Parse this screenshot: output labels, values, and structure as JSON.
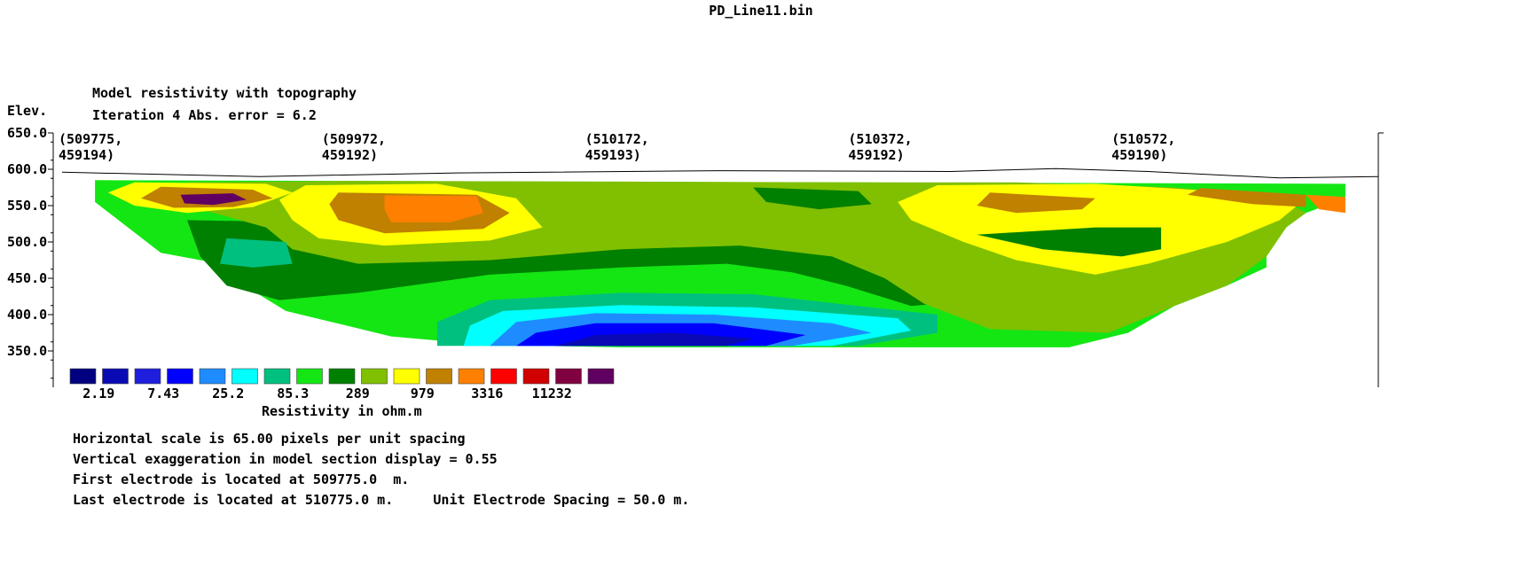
{
  "file_title": "PD_Line11.bin",
  "header": {
    "model_title": "Model resistivity with topography",
    "iteration_line": "Iteration 4 Abs. error = 6.2",
    "elev_label": "Elev."
  },
  "footer": {
    "lines": [
      "Horizontal scale is 65.00 pixels per unit spacing",
      "Vertical exaggeration in model section display = 0.55",
      "First electrode is located at 509775.0  m.",
      "Last electrode is located at 510775.0 m.     Unit Electrode Spacing = 50.0 m."
    ]
  },
  "chart_data": {
    "type": "heatmap",
    "title": "Model resistivity with topography",
    "subtitle": "Iteration 4 Abs. error = 6.2",
    "ylabel": "Elev.",
    "y_ticks": [
      "650.0",
      "600.0",
      "550.0",
      "500.0",
      "450.0",
      "400.0",
      "350.0"
    ],
    "ylim": [
      300,
      650
    ],
    "x_range": [
      509775,
      510775
    ],
    "x_markers": [
      {
        "line1": "(509775,",
        "line2": "459194)",
        "x": 509775
      },
      {
        "line1": "(509972,",
        "line2": "459192)",
        "x": 509975
      },
      {
        "line1": "(510172,",
        "line2": "459193)",
        "x": 510175
      },
      {
        "line1": "(510372,",
        "line2": "459192)",
        "x": 510375
      },
      {
        "line1": "(510572,",
        "line2": "459190)",
        "x": 510575
      }
    ],
    "topography": [
      [
        509775,
        596
      ],
      [
        509925,
        590
      ],
      [
        510075,
        595
      ],
      [
        510275,
        598
      ],
      [
        510450,
        597
      ],
      [
        510530,
        601
      ],
      [
        510600,
        597
      ],
      [
        510700,
        588
      ],
      [
        510775,
        590
      ]
    ],
    "section_outline": [
      [
        509800,
        585
      ],
      [
        510750,
        580
      ],
      [
        510750,
        560
      ],
      [
        510720,
        540
      ],
      [
        510705,
        520
      ],
      [
        510690,
        480
      ],
      [
        510690,
        465
      ],
      [
        510660,
        440
      ],
      [
        510620,
        412
      ],
      [
        510585,
        375
      ],
      [
        510540,
        355
      ],
      [
        510450,
        355
      ],
      [
        510200,
        355
      ],
      [
        510100,
        358
      ],
      [
        510025,
        370
      ],
      [
        509975,
        392
      ],
      [
        509945,
        405
      ],
      [
        509900,
        455
      ],
      [
        509895,
        470
      ],
      [
        509850,
        485
      ],
      [
        509800,
        555
      ]
    ],
    "legend": {
      "title": "Resistivity in ohm.m",
      "colors": [
        "#000080",
        "#0a0ab4",
        "#1e1edc",
        "#0000ff",
        "#1e8cff",
        "#00ffff",
        "#00c080",
        "#14e614",
        "#008000",
        "#80c000",
        "#ffff00",
        "#c08000",
        "#ff8000",
        "#ff0000",
        "#d00000",
        "#800040",
        "#600060"
      ],
      "labels": [
        "2.19",
        "7.43",
        "25.2",
        "85.3",
        "289",
        "979",
        "3316",
        "11232"
      ]
    },
    "zones": [
      {
        "color": "#14e614",
        "points": [
          [
            509800,
            585
          ],
          [
            510750,
            580
          ],
          [
            510750,
            560
          ],
          [
            510720,
            540
          ],
          [
            510705,
            520
          ],
          [
            510690,
            480
          ],
          [
            510690,
            465
          ],
          [
            510660,
            440
          ],
          [
            510620,
            412
          ],
          [
            510585,
            375
          ],
          [
            510540,
            355
          ],
          [
            510450,
            355
          ],
          [
            510200,
            355
          ],
          [
            510100,
            358
          ],
          [
            510025,
            370
          ],
          [
            509975,
            392
          ],
          [
            509945,
            405
          ],
          [
            509900,
            455
          ],
          [
            509895,
            470
          ],
          [
            509850,
            485
          ],
          [
            509800,
            555
          ]
        ]
      },
      {
        "color": "#008000",
        "points": [
          [
            509870,
            530
          ],
          [
            509930,
            528
          ],
          [
            509960,
            490
          ],
          [
            510000,
            480
          ],
          [
            510100,
            482
          ],
          [
            510200,
            495
          ],
          [
            510290,
            500
          ],
          [
            510370,
            480
          ],
          [
            510400,
            460
          ],
          [
            510440,
            415
          ],
          [
            510420,
            412
          ],
          [
            510370,
            440
          ],
          [
            510330,
            458
          ],
          [
            510280,
            470
          ],
          [
            510200,
            465
          ],
          [
            510100,
            455
          ],
          [
            510000,
            430
          ],
          [
            509940,
            420
          ],
          [
            509900,
            440
          ],
          [
            509880,
            480
          ]
        ]
      },
      {
        "color": "#80c000",
        "points": [
          [
            509870,
            582
          ],
          [
            510000,
            584
          ],
          [
            510200,
            583
          ],
          [
            510400,
            582
          ],
          [
            510500,
            582
          ],
          [
            510620,
            575
          ],
          [
            510700,
            560
          ],
          [
            510720,
            540
          ],
          [
            510705,
            520
          ],
          [
            510690,
            480
          ],
          [
            510660,
            440
          ],
          [
            510620,
            412
          ],
          [
            510570,
            375
          ],
          [
            510480,
            380
          ],
          [
            510430,
            415
          ],
          [
            510400,
            450
          ],
          [
            510360,
            480
          ],
          [
            510290,
            495
          ],
          [
            510200,
            490
          ],
          [
            510100,
            475
          ],
          [
            510000,
            470
          ],
          [
            509950,
            490
          ],
          [
            509930,
            520
          ],
          [
            509880,
            545
          ]
        ]
      },
      {
        "color": "#ffff00",
        "points": [
          [
            509960,
            578
          ],
          [
            510060,
            580
          ],
          [
            510120,
            560
          ],
          [
            510140,
            520
          ],
          [
            510100,
            502
          ],
          [
            510020,
            495
          ],
          [
            509970,
            505
          ],
          [
            509950,
            530
          ],
          [
            509940,
            558
          ]
        ]
      },
      {
        "color": "#ffff00",
        "points": [
          [
            509830,
            582
          ],
          [
            509930,
            580
          ],
          [
            509950,
            568
          ],
          [
            509920,
            548
          ],
          [
            509870,
            540
          ],
          [
            509830,
            550
          ],
          [
            509810,
            568
          ]
        ]
      },
      {
        "color": "#c08000",
        "points": [
          [
            509850,
            576
          ],
          [
            509920,
            572
          ],
          [
            509935,
            560
          ],
          [
            509905,
            548
          ],
          [
            509860,
            547
          ],
          [
            509835,
            560
          ]
        ]
      },
      {
        "color": "#600060",
        "points": [
          [
            509865,
            565
          ],
          [
            509905,
            567
          ],
          [
            509915,
            558
          ],
          [
            509890,
            551
          ],
          [
            509868,
            553
          ]
        ]
      },
      {
        "color": "#c08000",
        "points": [
          [
            509985,
            568
          ],
          [
            510090,
            565
          ],
          [
            510115,
            540
          ],
          [
            510095,
            518
          ],
          [
            510020,
            512
          ],
          [
            509985,
            530
          ],
          [
            509978,
            552
          ]
        ]
      },
      {
        "color": "#ff8000",
        "points": [
          [
            510020,
            564
          ],
          [
            510090,
            563
          ],
          [
            510095,
            540
          ],
          [
            510070,
            527
          ],
          [
            510025,
            527
          ],
          [
            510020,
            545
          ]
        ]
      },
      {
        "color": "#ffff00",
        "points": [
          [
            510440,
            578
          ],
          [
            510560,
            580
          ],
          [
            510650,
            570
          ],
          [
            510720,
            560
          ],
          [
            510700,
            530
          ],
          [
            510660,
            500
          ],
          [
            510600,
            470
          ],
          [
            510560,
            455
          ],
          [
            510500,
            475
          ],
          [
            510460,
            500
          ],
          [
            510420,
            530
          ],
          [
            510410,
            555
          ]
        ]
      },
      {
        "color": "#c08000",
        "points": [
          [
            510480,
            568
          ],
          [
            510560,
            560
          ],
          [
            510550,
            545
          ],
          [
            510500,
            540
          ],
          [
            510470,
            550
          ]
        ]
      },
      {
        "color": "#c08000",
        "points": [
          [
            510640,
            574
          ],
          [
            510720,
            565
          ],
          [
            510720,
            548
          ],
          [
            510680,
            552
          ],
          [
            510630,
            565
          ]
        ]
      },
      {
        "color": "#ff8000",
        "points": [
          [
            510720,
            565
          ],
          [
            510750,
            562
          ],
          [
            510750,
            540
          ],
          [
            510730,
            545
          ]
        ]
      },
      {
        "color": "#008000",
        "points": [
          [
            510470,
            510
          ],
          [
            510560,
            520
          ],
          [
            510610,
            520
          ],
          [
            510610,
            490
          ],
          [
            510580,
            480
          ],
          [
            510520,
            490
          ]
        ]
      },
      {
        "color": "#008000",
        "points": [
          [
            510300,
            575
          ],
          [
            510380,
            570
          ],
          [
            510390,
            552
          ],
          [
            510350,
            545
          ],
          [
            510310,
            555
          ]
        ]
      },
      {
        "color": "#00c080",
        "points": [
          [
            509900,
            505
          ],
          [
            509945,
            500
          ],
          [
            509950,
            470
          ],
          [
            509920,
            465
          ],
          [
            509895,
            470
          ]
        ]
      },
      {
        "color": "#00c080",
        "points": [
          [
            510060,
            357
          ],
          [
            510380,
            357
          ],
          [
            510440,
            375
          ],
          [
            510440,
            400
          ],
          [
            510380,
            412
          ],
          [
            510300,
            428
          ],
          [
            510200,
            430
          ],
          [
            510100,
            420
          ],
          [
            510060,
            390
          ]
        ]
      },
      {
        "color": "#00ffff",
        "points": [
          [
            510080,
            357
          ],
          [
            510360,
            357
          ],
          [
            510420,
            378
          ],
          [
            510410,
            395
          ],
          [
            510300,
            410
          ],
          [
            510200,
            413
          ],
          [
            510110,
            405
          ],
          [
            510085,
            385
          ]
        ]
      },
      {
        "color": "#1e8cff",
        "points": [
          [
            510100,
            357
          ],
          [
            510330,
            357
          ],
          [
            510390,
            375
          ],
          [
            510360,
            388
          ],
          [
            510270,
            400
          ],
          [
            510180,
            402
          ],
          [
            510120,
            390
          ]
        ]
      },
      {
        "color": "#0000ff",
        "points": [
          [
            510120,
            357
          ],
          [
            510310,
            357
          ],
          [
            510340,
            372
          ],
          [
            510270,
            388
          ],
          [
            510180,
            388
          ],
          [
            510135,
            375
          ]
        ]
      },
      {
        "color": "#0a0ab4",
        "points": [
          [
            510150,
            357
          ],
          [
            510280,
            357
          ],
          [
            510300,
            367
          ],
          [
            510240,
            375
          ],
          [
            510180,
            372
          ]
        ]
      }
    ]
  }
}
